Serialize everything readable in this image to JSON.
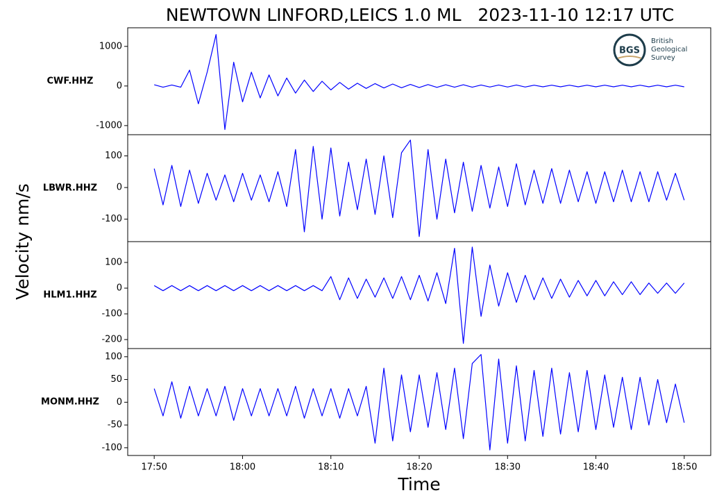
{
  "chart_data": {
    "type": "line",
    "title": "NEWTOWN LINFORD,LEICS 1.0 ML   2023-11-10 12:17 UTC",
    "x_label": "Time",
    "y_label": "Velocity nm/s",
    "xlim": [
      "17:47",
      "18:53"
    ],
    "xticks": [
      "17:50",
      "18:00",
      "18:10",
      "18:20",
      "18:30",
      "18:40",
      "18:50"
    ],
    "x": [
      "17:50",
      "17:51",
      "17:52",
      "17:53",
      "17:54",
      "17:55",
      "17:56",
      "17:57",
      "17:58",
      "17:59",
      "18:00",
      "18:01",
      "18:02",
      "18:03",
      "18:04",
      "18:05",
      "18:06",
      "18:07",
      "18:08",
      "18:09",
      "18:10",
      "18:11",
      "18:12",
      "18:13",
      "18:14",
      "18:15",
      "18:16",
      "18:17",
      "18:18",
      "18:19",
      "18:20",
      "18:21",
      "18:22",
      "18:23",
      "18:24",
      "18:25",
      "18:26",
      "18:27",
      "18:28",
      "18:29",
      "18:30",
      "18:31",
      "18:32",
      "18:33",
      "18:34",
      "18:35",
      "18:36",
      "18:37",
      "18:38",
      "18:39",
      "18:40",
      "18:41",
      "18:42",
      "18:43",
      "18:44",
      "18:45",
      "18:46",
      "18:47",
      "18:48",
      "18:49",
      "18:50"
    ],
    "series": [
      {
        "name": "CWF.HHZ",
        "color": "#0000ff",
        "ylim": [
          -1230,
          1470
        ],
        "yticks": [
          -1000,
          0,
          1000
        ],
        "values": [
          30,
          -30,
          25,
          -30,
          400,
          -450,
          350,
          1300,
          -1100,
          600,
          -400,
          350,
          -300,
          280,
          -250,
          200,
          -180,
          150,
          -140,
          120,
          -100,
          90,
          -80,
          70,
          -60,
          60,
          -50,
          50,
          -45,
          40,
          -40,
          35,
          -35,
          30,
          -30,
          30,
          -30,
          25,
          -25,
          25,
          -25,
          25,
          -25,
          20,
          -20,
          20,
          -20,
          20,
          -20,
          20,
          -20,
          20,
          -20,
          20,
          -20,
          20,
          -20,
          20,
          -20,
          20,
          -20
        ]
      },
      {
        "name": "LBWR.HHZ",
        "color": "#0000ff",
        "ylim": [
          -171,
          167
        ],
        "yticks": [
          -100,
          0,
          100
        ],
        "values": [
          60,
          -55,
          70,
          -60,
          55,
          -50,
          45,
          -40,
          40,
          -45,
          45,
          -40,
          40,
          -45,
          50,
          -60,
          120,
          -140,
          130,
          -100,
          125,
          -90,
          80,
          -70,
          90,
          -85,
          100,
          -95,
          110,
          150,
          -155,
          120,
          -100,
          90,
          -80,
          80,
          -75,
          70,
          -65,
          65,
          -60,
          75,
          -55,
          55,
          -50,
          60,
          -50,
          55,
          -45,
          50,
          -50,
          50,
          -45,
          55,
          -45,
          50,
          -45,
          50,
          -40,
          45,
          -40
        ]
      },
      {
        "name": "HLM1.HHZ",
        "color": "#0000ff",
        "ylim": [
          -235,
          181
        ],
        "yticks": [
          -200,
          -100,
          0,
          100
        ],
        "values": [
          10,
          -10,
          10,
          -10,
          10,
          -10,
          10,
          -10,
          10,
          -10,
          10,
          -10,
          10,
          -10,
          10,
          -10,
          10,
          -10,
          10,
          -10,
          45,
          -45,
          40,
          -40,
          35,
          -35,
          40,
          -40,
          45,
          -45,
          50,
          -50,
          60,
          -60,
          155,
          -215,
          160,
          -110,
          90,
          -70,
          60,
          -55,
          50,
          -45,
          40,
          -40,
          35,
          -35,
          30,
          -30,
          30,
          -30,
          25,
          -25,
          25,
          -25,
          20,
          -20,
          20,
          -20,
          20
        ]
      },
      {
        "name": "MONM.HHZ",
        "color": "#0000ff",
        "ylim": [
          -117,
          118
        ],
        "yticks": [
          -100,
          -50,
          0,
          50,
          100
        ],
        "values": [
          30,
          -30,
          45,
          -35,
          35,
          -30,
          30,
          -30,
          35,
          -40,
          30,
          -30,
          30,
          -30,
          30,
          -30,
          35,
          -35,
          30,
          -30,
          30,
          -35,
          30,
          -30,
          35,
          -90,
          75,
          -85,
          60,
          -65,
          60,
          -55,
          65,
          -60,
          75,
          -80,
          85,
          105,
          -105,
          95,
          -90,
          80,
          -85,
          70,
          -75,
          75,
          -70,
          65,
          -65,
          70,
          -60,
          60,
          -55,
          55,
          -60,
          55,
          -50,
          50,
          -45,
          40,
          -45
        ]
      }
    ],
    "logo": {
      "mark": "BGS",
      "lines": [
        "British",
        "Geological",
        "Survey"
      ]
    }
  }
}
